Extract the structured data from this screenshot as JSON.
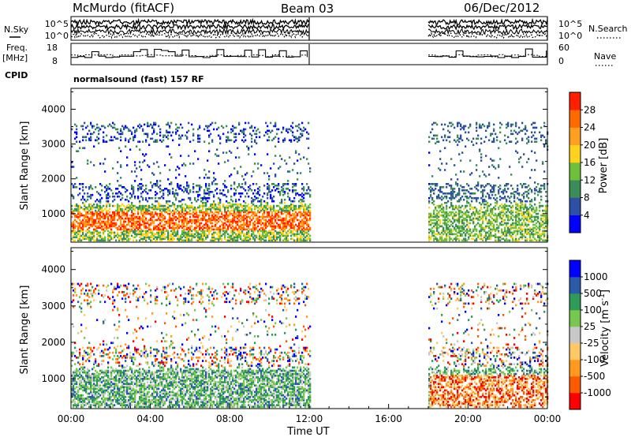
{
  "header": {
    "station": "McMurdo (fitACF)",
    "beam": "Beam 03",
    "date": "06/Dec/2012"
  },
  "left_labels": {
    "nsky": "N.Sky",
    "freq": "Freq.",
    "freq_unit": "[MHz]",
    "cpid": "CPID"
  },
  "right_labels": {
    "nsearch": "N.Search",
    "nave": "Nave"
  },
  "cpid_text": "normalsound (fast) 157 RF",
  "colors": {
    "power": [
      "#0000ff",
      "#2d50a6",
      "#3c8c5a",
      "#6fbf3a",
      "#ffd21e",
      "#ffa020",
      "#ff6a00",
      "#ff2000"
    ],
    "velocity": [
      "#ff0000",
      "#ff5a00",
      "#ff9a1e",
      "#ffc864",
      "#c8c8c8",
      "#78c850",
      "#2f9a5a",
      "#2a5aa8",
      "#0000ff"
    ]
  },
  "chart_data": [
    {
      "type": "line",
      "panel": "noise",
      "series": [
        {
          "name": "N.Sky"
        },
        {
          "name": "N.Search"
        }
      ],
      "ylabel_left": "N.Sky",
      "ylabel_right": "N.Search",
      "left_ticks": [
        "10^5",
        "10^0"
      ],
      "right_ticks": [
        "10^5",
        "10^0"
      ],
      "y_log": true,
      "data_ranges_hours": [
        [
          0,
          12
        ],
        [
          18,
          24
        ]
      ]
    },
    {
      "type": "line",
      "panel": "frequency",
      "series": [
        {
          "name": "Freq."
        },
        {
          "name": "Nave"
        }
      ],
      "left_ticks": [
        "18",
        "8"
      ],
      "right_ticks": [
        "60",
        "0"
      ],
      "ylim_left": [
        8,
        18
      ],
      "ylim_right": [
        0,
        60
      ],
      "data_ranges_hours": [
        [
          0,
          12
        ],
        [
          18,
          24
        ]
      ]
    },
    {
      "type": "heatmap",
      "panel": "power",
      "ylabel": "Slant Range [km]",
      "yticks": [
        "4000",
        "3000",
        "2000",
        "1000"
      ],
      "ylim": [
        180,
        4600
      ],
      "xlim_hours": [
        0,
        24
      ],
      "colorbar_label": "Power [dB]",
      "colorbar_ticks": [
        "28",
        "24",
        "20",
        "16",
        "12",
        "8",
        "4"
      ],
      "colorbar_range": [
        0,
        32
      ],
      "data_ranges_hours": [
        [
          0,
          12
        ],
        [
          18,
          24
        ]
      ],
      "strongest_band_km": [
        500,
        1100
      ]
    },
    {
      "type": "heatmap",
      "panel": "velocity",
      "ylabel": "Slant Range [km]",
      "yticks": [
        "4000",
        "3000",
        "2000",
        "1000"
      ],
      "ylim": [
        180,
        4600
      ],
      "xlim_hours": [
        0,
        24
      ],
      "xlabel": "Time UT",
      "xticks": [
        "00:00",
        "04:00",
        "08:00",
        "12:00",
        "16:00",
        "20:00",
        "00:00"
      ],
      "colorbar_label": "Velocity [m s",
      "colorbar_label_sup": "-1",
      "colorbar_label_end": "]",
      "colorbar_ticks": [
        "1000",
        "500",
        "100",
        "25",
        "-25",
        "-100",
        "-500",
        "-1000"
      ],
      "data_ranges_hours": [
        [
          0,
          12
        ],
        [
          18,
          24
        ]
      ]
    }
  ]
}
